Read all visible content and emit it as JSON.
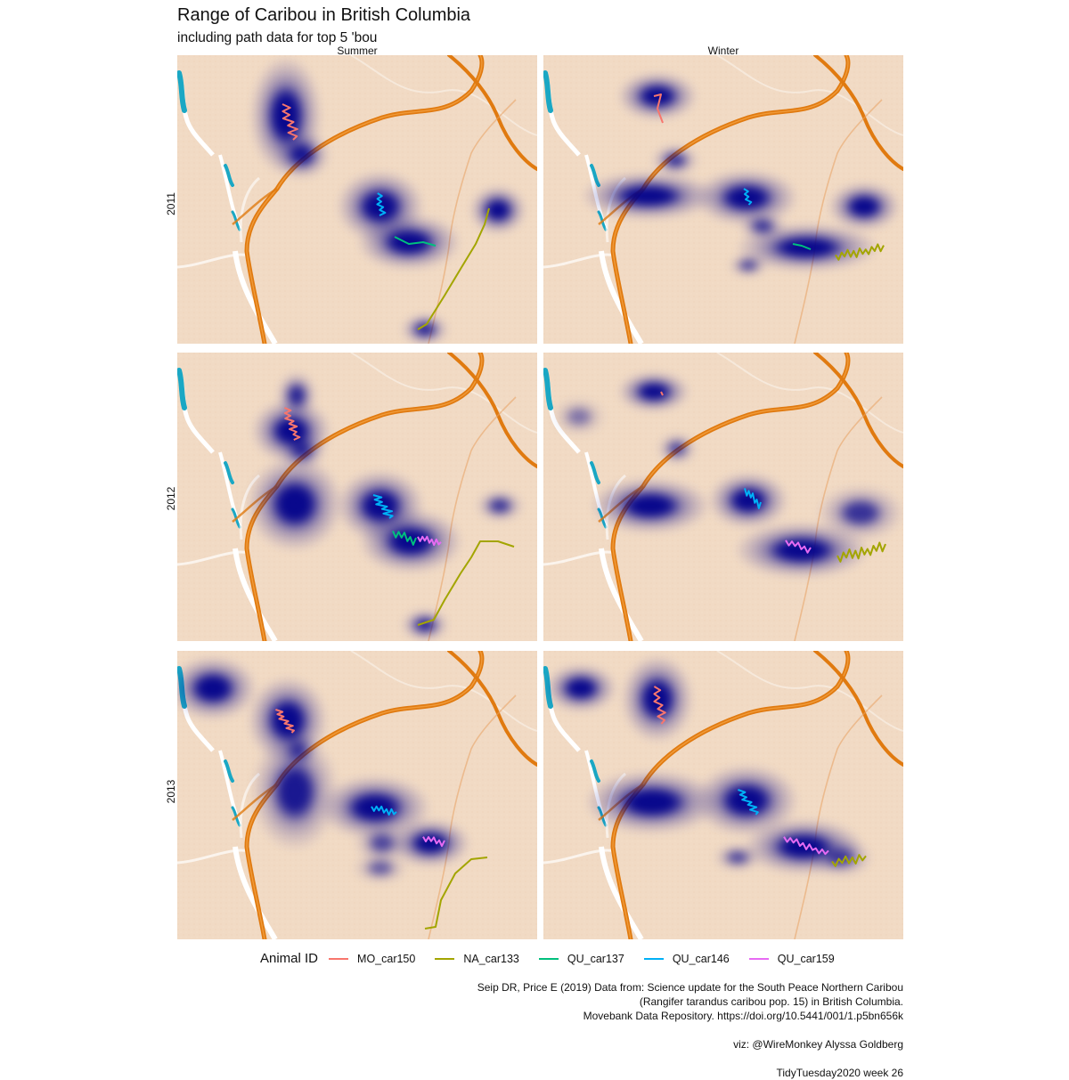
{
  "title": "Range of Caribou in British Columbia",
  "subtitle": "including path data for top 5 'bou",
  "columns": [
    "Summer",
    "Winter"
  ],
  "rows": [
    "2011",
    "2012",
    "2013"
  ],
  "legend": {
    "title": "Animal ID",
    "items": [
      {
        "label": "MO_car150",
        "color": "#f8766d"
      },
      {
        "label": "NA_car133",
        "color": "#a3a500"
      },
      {
        "label": "QU_car137",
        "color": "#00bf7d"
      },
      {
        "label": "QU_car146",
        "color": "#00b0f6"
      },
      {
        "label": "QU_car159",
        "color": "#e76bf3"
      }
    ]
  },
  "caption": {
    "line1": "Seip DR, Price E (2019) Data from: Science update for the South Peace Northern Caribou",
    "line2": "(Rangifer tarandus caribou pop. 15) in British Columbia.",
    "line3": "Movebank Data Repository. https://doi.org/10.5441/001/1.p5bn656k",
    "line4": "viz: @WireMonkey Alyssa Goldberg",
    "line5": "TidyTuesday2020 week 26"
  },
  "colors": {
    "map_bg": "#f2dcc6",
    "road": "#e07a10",
    "water": "#1aa7c4",
    "density": "#00008b"
  }
}
